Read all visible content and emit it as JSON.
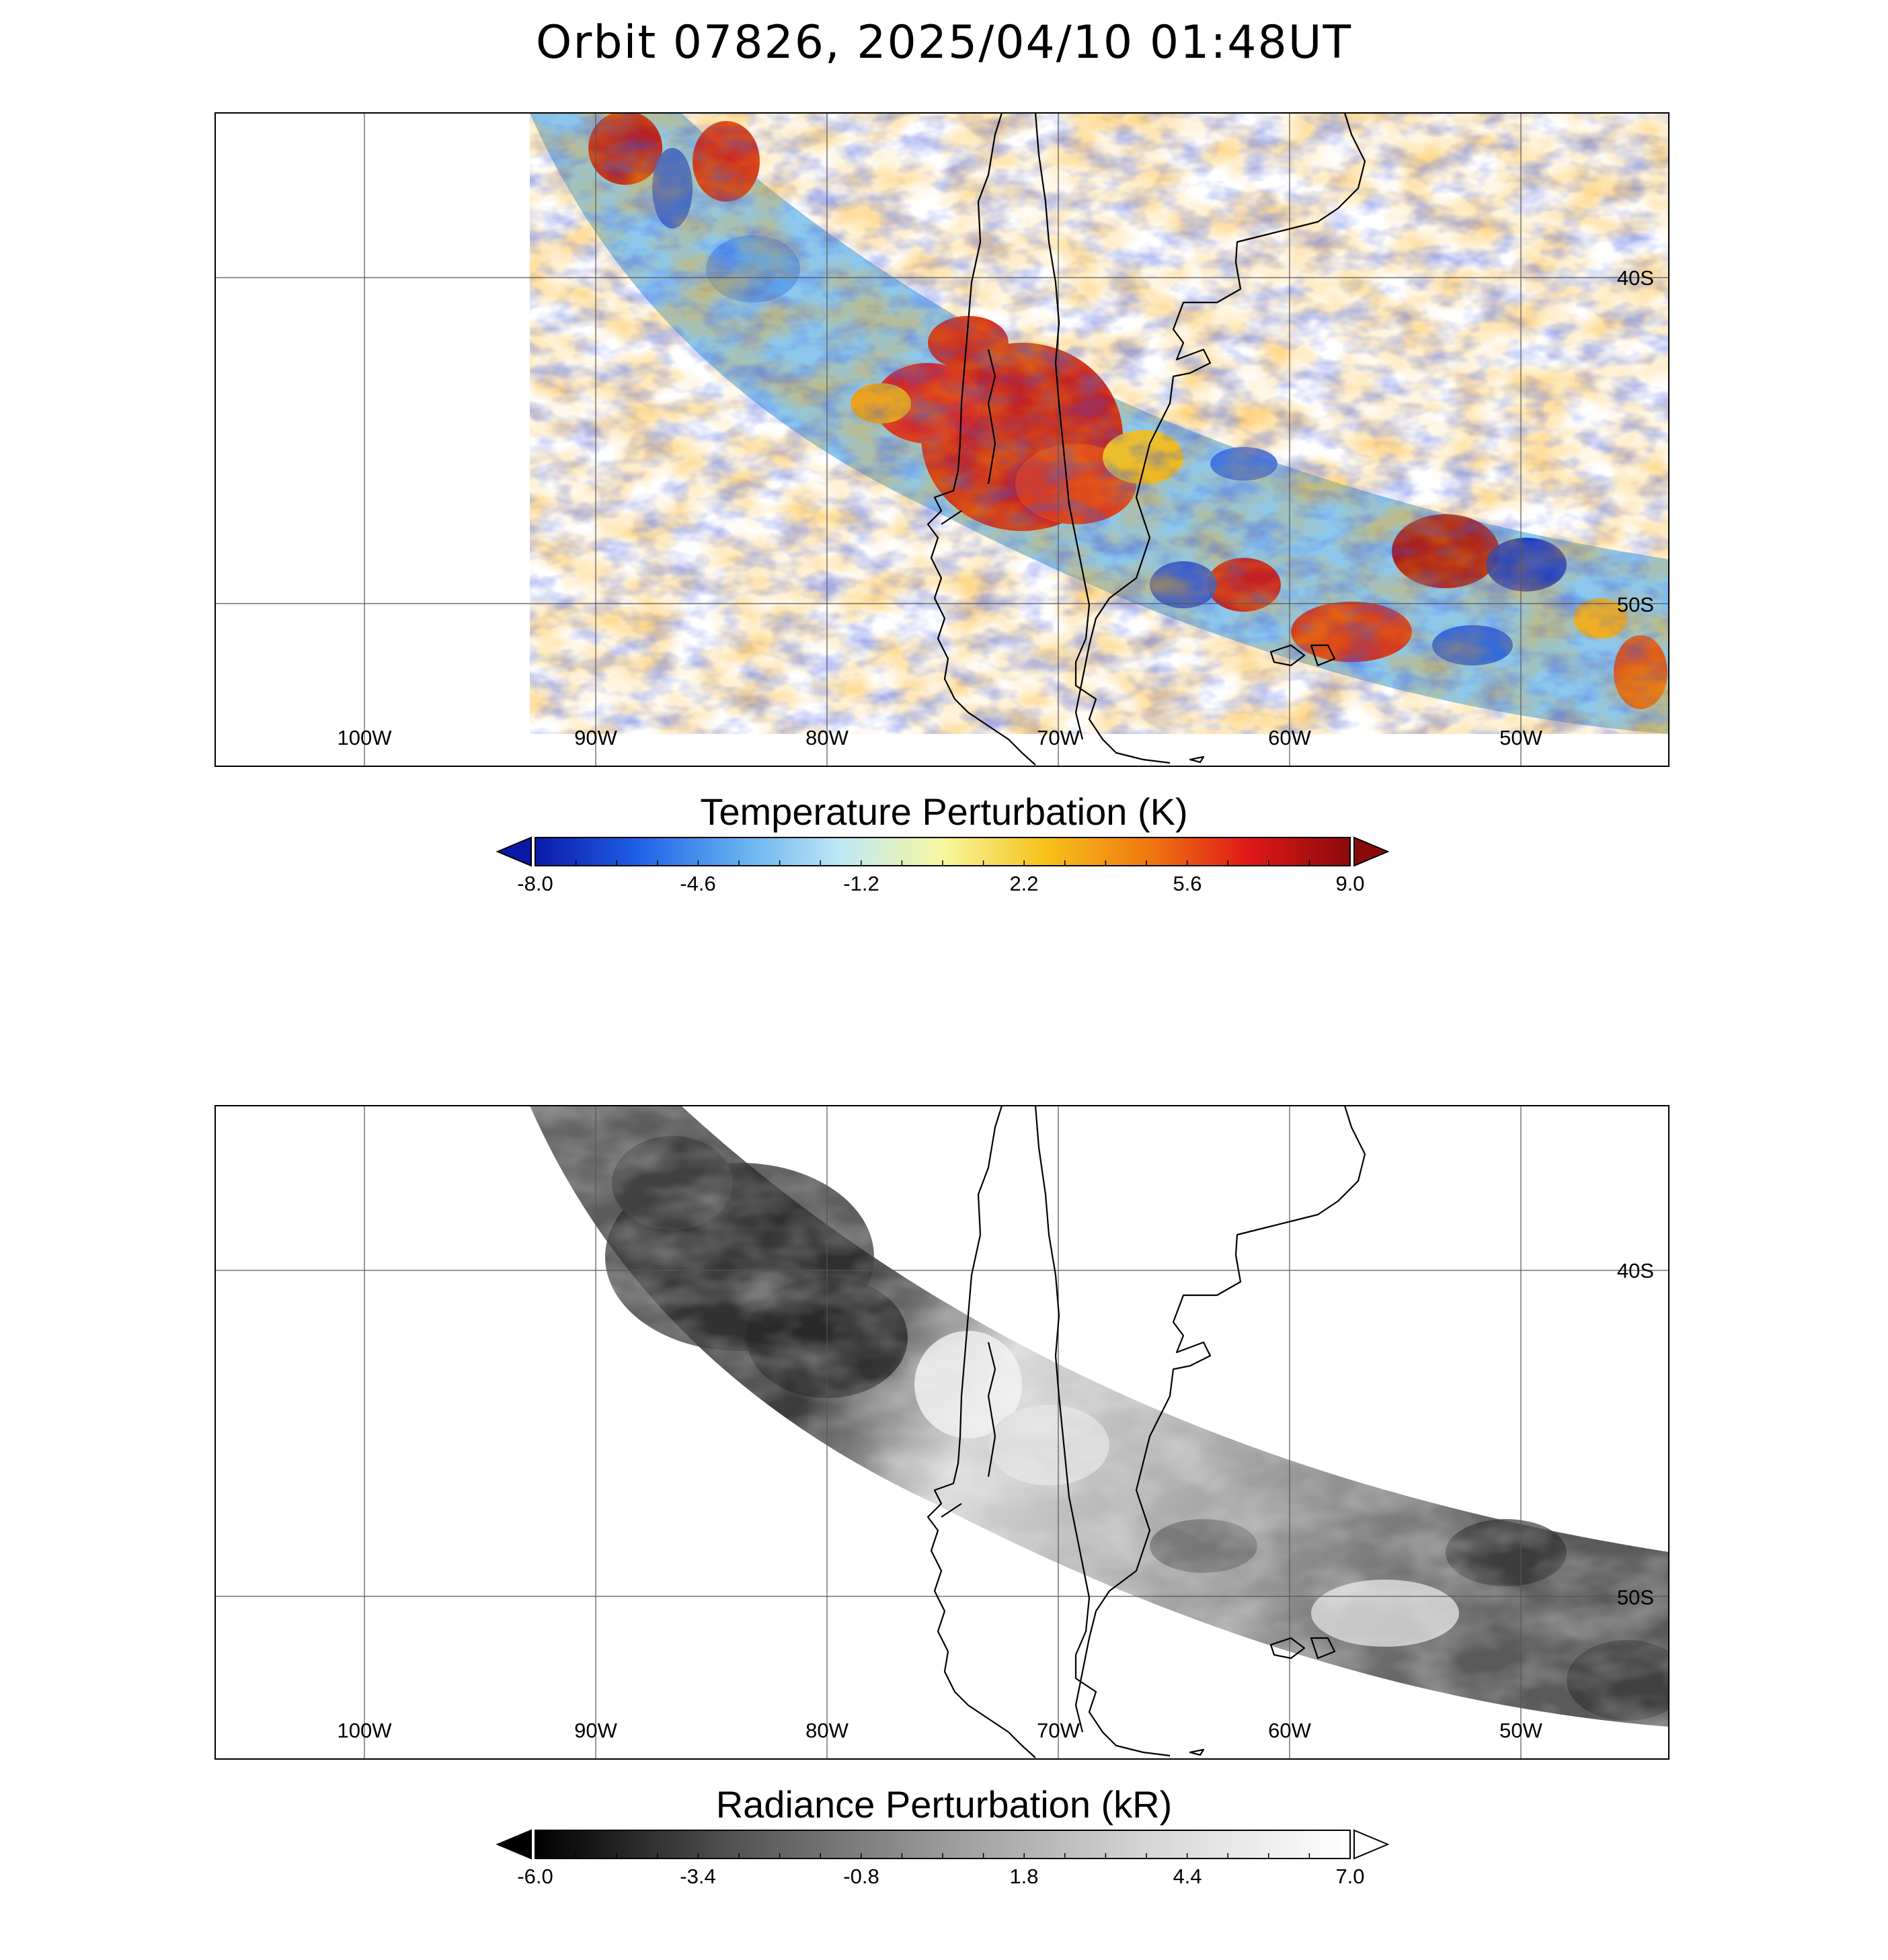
{
  "title": "Orbit 07826, 2025/04/10 01:48UT",
  "map": {
    "lon_labels": [
      "100W",
      "90W",
      "80W",
      "70W",
      "60W",
      "50W"
    ],
    "lat_labels": [
      "40S",
      "50S"
    ]
  },
  "panels": [
    {
      "id": "temperature",
      "colorbar_title": "Temperature Perturbation (K)",
      "ticks": [
        "-8.0",
        "-4.6",
        "-1.2",
        "2.2",
        "5.6",
        "9.0"
      ],
      "range": [
        -8.0,
        9.0
      ],
      "colors": [
        "#0a1aa8",
        "#1f5fe6",
        "#62aef0",
        "#bfe8f5",
        "#f7f7a0",
        "#f6c21a",
        "#f07a10",
        "#e01818",
        "#8a0a0a"
      ]
    },
    {
      "id": "radiance",
      "colorbar_title": "Radiance Perturbation (kR)",
      "ticks": [
        "-6.0",
        "-3.4",
        "-0.8",
        "1.8",
        "4.4",
        "7.0"
      ],
      "range": [
        -6.0,
        7.0
      ],
      "colors": [
        "#000000",
        "#555555",
        "#9a9a9a",
        "#d6d6d6",
        "#ffffff"
      ]
    }
  ]
}
